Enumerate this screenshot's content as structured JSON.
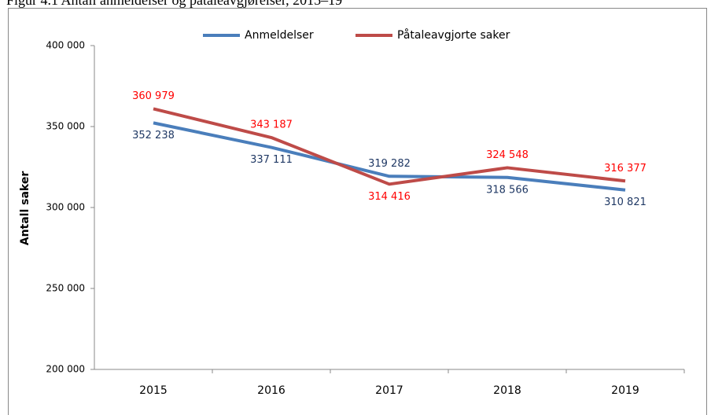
{
  "chart_data": {
    "type": "line",
    "title": "Figur 4.1 Antall anmeldelser og påtaleavgjørelser, 2015–19",
    "y_label": "Antall saker",
    "categories": [
      "2015",
      "2016",
      "2017",
      "2018",
      "2019"
    ],
    "series": [
      {
        "name": "Anmeldelser",
        "color": "#4a7ebb",
        "values": [
          352238,
          337111,
          319282,
          318566,
          310821
        ],
        "value_labels": [
          "352 238",
          "337 111",
          "319 282",
          "318 566",
          "310 821"
        ]
      },
      {
        "name": "Påtaleavgjorte saker",
        "color": "#be4b48",
        "values": [
          360979,
          343187,
          314416,
          324548,
          316377
        ],
        "value_labels": [
          "360 979",
          "343 187",
          "314 416",
          "324 548",
          "316 377"
        ]
      }
    ],
    "ylim": [
      200000,
      400000
    ],
    "yticks": [
      {
        "value": 200000,
        "label": "200 000"
      },
      {
        "value": 250000,
        "label": "250 000"
      },
      {
        "value": 300000,
        "label": "300 000"
      },
      {
        "value": 350000,
        "label": "350 000"
      },
      {
        "value": 400000,
        "label": "400 000"
      }
    ],
    "legend": "top"
  }
}
